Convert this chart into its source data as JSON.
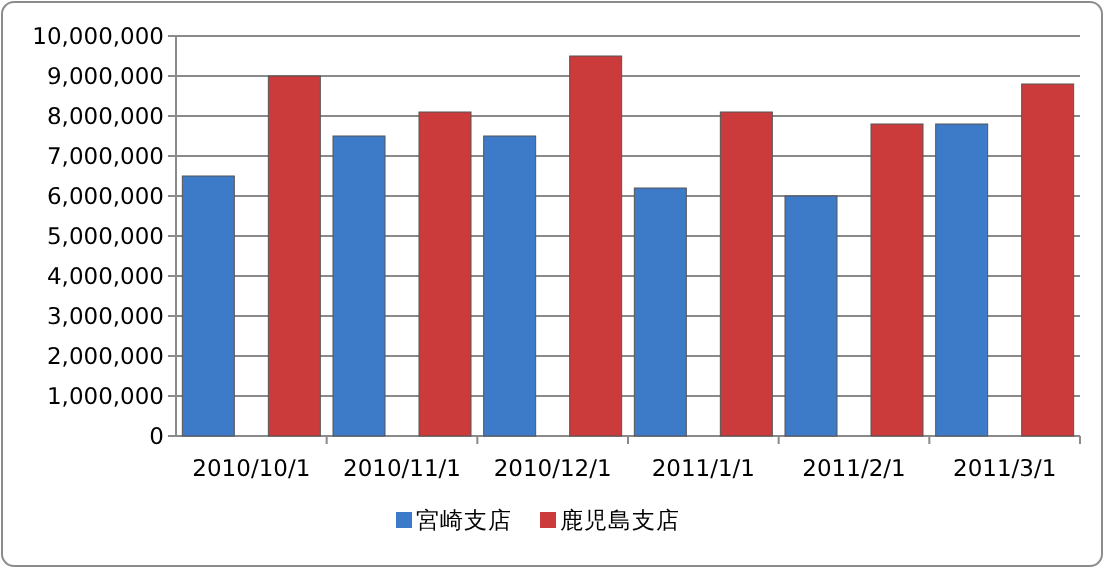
{
  "chart_data": {
    "type": "bar",
    "categories": [
      "2010/10/1",
      "2010/11/1",
      "2010/12/1",
      "2011/1/1",
      "2011/2/1",
      "2011/3/1"
    ],
    "series": [
      {
        "name": "宮崎支店",
        "color": "#3d7bc8",
        "values": [
          6500000,
          7500000,
          7500000,
          6200000,
          6000000,
          7800000
        ]
      },
      {
        "name": "鹿児島支店",
        "color": "#cc3b3b",
        "values": [
          9000000,
          8100000,
          9500000,
          8100000,
          7800000,
          8800000
        ]
      }
    ],
    "ylim": [
      0,
      10000000
    ],
    "yticks": [
      {
        "value": 0,
        "label": "0"
      },
      {
        "value": 1000000,
        "label": "1,000,000"
      },
      {
        "value": 2000000,
        "label": "2,000,000"
      },
      {
        "value": 3000000,
        "label": "3,000,000"
      },
      {
        "value": 4000000,
        "label": "4,000,000"
      },
      {
        "value": 5000000,
        "label": "5,000,000"
      },
      {
        "value": 6000000,
        "label": "6,000,000"
      },
      {
        "value": 7000000,
        "label": "7,000,000"
      },
      {
        "value": 8000000,
        "label": "8,000,000"
      },
      {
        "value": 9000000,
        "label": "9,000,000"
      },
      {
        "value": 10000000,
        "label": "10,000,000"
      }
    ],
    "grid": "y",
    "legend": "bottom"
  }
}
